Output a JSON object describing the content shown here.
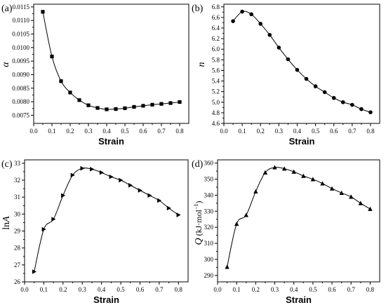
{
  "chart_data": [
    {
      "type": "line",
      "panel": "(a)",
      "xlabel": "Strain",
      "ylabel": "α",
      "xlim": [
        0.0,
        0.85
      ],
      "ylim": [
        0.0072,
        0.0116
      ],
      "x_ticks": [
        0.0,
        0.1,
        0.2,
        0.3,
        0.4,
        0.5,
        0.6,
        0.7,
        0.8
      ],
      "x_tick_labels": [
        "0.0",
        "0.1",
        "0.2",
        "0.3",
        "0.4",
        "0.5",
        "0.6",
        "0.7",
        "0.8"
      ],
      "y_ticks": [
        0.0075,
        0.008,
        0.0085,
        0.009,
        0.0095,
        0.01,
        0.0105,
        0.011,
        0.0115
      ],
      "y_tick_labels": [
        "0.0075",
        "0.0080",
        "0.0085",
        "0.0090",
        "0.0095",
        "0.0100",
        "0.0105",
        "0.0110",
        "0.0115"
      ],
      "marker": "square",
      "x": [
        0.05,
        0.1,
        0.15,
        0.2,
        0.25,
        0.3,
        0.35,
        0.4,
        0.45,
        0.5,
        0.55,
        0.6,
        0.65,
        0.7,
        0.75,
        0.8
      ],
      "y": [
        0.01132,
        0.00967,
        0.00876,
        0.00834,
        0.00806,
        0.00787,
        0.00777,
        0.00772,
        0.00773,
        0.00776,
        0.00781,
        0.00785,
        0.00789,
        0.00792,
        0.00795,
        0.00799
      ]
    },
    {
      "type": "line",
      "panel": "(b)",
      "xlabel": "Strain",
      "ylabel": "n",
      "xlim": [
        0.0,
        0.85
      ],
      "ylim": [
        4.6,
        6.85
      ],
      "x_ticks": [
        0.0,
        0.1,
        0.2,
        0.3,
        0.4,
        0.5,
        0.6,
        0.7,
        0.8
      ],
      "x_tick_labels": [
        "0.0",
        "0.1",
        "0.2",
        "0.3",
        "0.4",
        "0.5",
        "0.6",
        "0.7",
        "0.8"
      ],
      "y_ticks": [
        4.6,
        4.8,
        5.0,
        5.2,
        5.4,
        5.6,
        5.8,
        6.0,
        6.2,
        6.4,
        6.6,
        6.8
      ],
      "y_tick_labels": [
        "4.6",
        "4.8",
        "5.0",
        "5.2",
        "5.4",
        "5.6",
        "5.8",
        "6.0",
        "6.2",
        "6.4",
        "6.6",
        "6.8"
      ],
      "marker": "circle",
      "x": [
        0.05,
        0.1,
        0.15,
        0.2,
        0.25,
        0.3,
        0.35,
        0.4,
        0.45,
        0.5,
        0.55,
        0.6,
        0.65,
        0.7,
        0.75,
        0.8
      ],
      "y": [
        6.53,
        6.71,
        6.66,
        6.48,
        6.27,
        6.03,
        5.81,
        5.61,
        5.44,
        5.3,
        5.19,
        5.08,
        5.0,
        4.95,
        4.87,
        4.81
      ]
    },
    {
      "type": "line",
      "panel": "(c)",
      "xlabel": "Strain",
      "ylabel_prefix": "ln",
      "ylabel_var": "A",
      "xlim": [
        0.0,
        0.85
      ],
      "ylim": [
        26.0,
        33.2
      ],
      "x_ticks": [
        0.0,
        0.1,
        0.2,
        0.3,
        0.4,
        0.5,
        0.6,
        0.7,
        0.8
      ],
      "x_tick_labels": [
        "0.0",
        "0.1",
        "0.2",
        "0.3",
        "0.4",
        "0.5",
        "0.6",
        "0.7",
        "0.8"
      ],
      "y_ticks": [
        26,
        27,
        28,
        29,
        30,
        31,
        32,
        33
      ],
      "y_tick_labels": [
        "26",
        "27",
        "28",
        "29",
        "30",
        "31",
        "32",
        "33"
      ],
      "marker": "triangle-right",
      "x": [
        0.05,
        0.1,
        0.15,
        0.2,
        0.25,
        0.3,
        0.35,
        0.4,
        0.45,
        0.5,
        0.55,
        0.6,
        0.65,
        0.7,
        0.75,
        0.8
      ],
      "y": [
        26.6,
        29.1,
        29.7,
        31.1,
        32.3,
        32.7,
        32.65,
        32.45,
        32.2,
        32.0,
        31.7,
        31.4,
        31.1,
        30.8,
        30.35,
        29.95
      ]
    },
    {
      "type": "line",
      "panel": "(d)",
      "xlabel": "Strain",
      "ylabel_var": "Q",
      "ylabel_unit_main": " (kJ·mol",
      "ylabel_unit_sup": "−1",
      "ylabel_unit_end": ")",
      "xlim": [
        0.0,
        0.85
      ],
      "ylim": [
        286,
        362
      ],
      "x_ticks": [
        0.0,
        0.1,
        0.2,
        0.3,
        0.4,
        0.5,
        0.6,
        0.7,
        0.8
      ],
      "x_tick_labels": [
        "0.0",
        "0.1",
        "0.2",
        "0.3",
        "0.4",
        "0.5",
        "0.6",
        "0.7",
        "0.8"
      ],
      "y_ticks": [
        290,
        300,
        310,
        320,
        330,
        340,
        350,
        360
      ],
      "y_tick_labels": [
        "290",
        "300",
        "310",
        "320",
        "330",
        "340",
        "350",
        "360"
      ],
      "marker": "triangle-up",
      "x": [
        0.05,
        0.1,
        0.15,
        0.2,
        0.25,
        0.3,
        0.35,
        0.4,
        0.45,
        0.5,
        0.55,
        0.6,
        0.65,
        0.7,
        0.75,
        0.8
      ],
      "y": [
        295.3,
        322.1,
        327.6,
        342.3,
        354.1,
        357.3,
        356.5,
        354.6,
        352.0,
        349.9,
        347.3,
        344.1,
        341.4,
        339.0,
        335.0,
        331.4
      ]
    }
  ]
}
